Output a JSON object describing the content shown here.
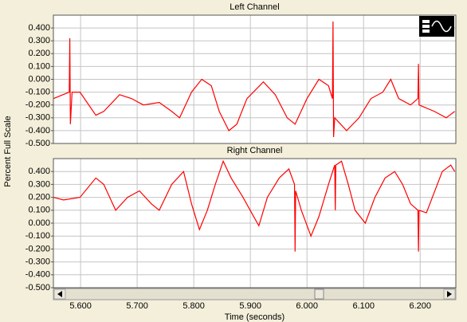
{
  "chart_data": [
    {
      "type": "line",
      "title": "Left Channel",
      "ylabel": "Percent Full Scale",
      "xlim": [
        5.552,
        6.263
      ],
      "ylim": [
        -0.5,
        0.5
      ],
      "yticks": [
        {
          "value": -0.5,
          "label": "-0.500"
        },
        {
          "value": -0.4,
          "label": "-0.400"
        },
        {
          "value": -0.3,
          "label": "-0.300"
        },
        {
          "value": -0.2,
          "label": "-0.200"
        },
        {
          "value": -0.1,
          "label": "-0.100"
        },
        {
          "value": 0,
          "label": "0.000"
        },
        {
          "value": 0.1,
          "label": "0.100"
        },
        {
          "value": 0.2,
          "label": "0.200"
        },
        {
          "value": 0.3,
          "label": "0.300"
        },
        {
          "value": 0.4,
          "label": "0.400"
        }
      ],
      "grid": true,
      "x": [
        5.552,
        5.58,
        5.581,
        5.582,
        5.585,
        5.599,
        5.627,
        5.641,
        5.669,
        5.69,
        5.711,
        5.739,
        5.761,
        5.775,
        5.796,
        5.814,
        5.831,
        5.845,
        5.862,
        5.876,
        5.894,
        5.923,
        5.944,
        5.965,
        5.979,
        6.0,
        6.021,
        6.038,
        6.045,
        6.046,
        6.047,
        6.049,
        6.07,
        6.092,
        6.113,
        6.134,
        6.148,
        6.162,
        6.183,
        6.196,
        6.197,
        6.198,
        6.225,
        6.246,
        6.261
      ],
      "series": [
        {
          "color": "#ff0000",
          "values": [
            -0.15,
            -0.1,
            0.32,
            -0.35,
            -0.1,
            -0.1,
            -0.28,
            -0.25,
            -0.12,
            -0.15,
            -0.2,
            -0.18,
            -0.25,
            -0.3,
            -0.1,
            0.0,
            -0.05,
            -0.25,
            -0.4,
            -0.35,
            -0.15,
            -0.02,
            -0.12,
            -0.3,
            -0.35,
            -0.15,
            0.0,
            -0.05,
            -0.15,
            0.45,
            -0.45,
            -0.3,
            -0.4,
            -0.3,
            -0.15,
            -0.1,
            0.0,
            -0.15,
            -0.2,
            -0.15,
            0.12,
            -0.2,
            -0.25,
            -0.3,
            -0.25
          ]
        }
      ]
    },
    {
      "type": "line",
      "title": "Right Channel",
      "xlabel": "Time (seconds)",
      "xlim": [
        5.552,
        6.263
      ],
      "ylim": [
        -0.5,
        0.5
      ],
      "xticks": [
        {
          "value": 5.6,
          "label": "5.600"
        },
        {
          "value": 5.7,
          "label": "5.700"
        },
        {
          "value": 5.8,
          "label": "5.800"
        },
        {
          "value": 5.9,
          "label": "5.900"
        },
        {
          "value": 6,
          "label": "6.000"
        },
        {
          "value": 6.1,
          "label": "6.100"
        },
        {
          "value": 6.2,
          "label": "6.200"
        }
      ],
      "yticks": [
        {
          "value": -0.5,
          "label": "-0.500"
        },
        {
          "value": -0.4,
          "label": "-0.400"
        },
        {
          "value": -0.3,
          "label": "-0.300"
        },
        {
          "value": -0.2,
          "label": "-0.200"
        },
        {
          "value": -0.1,
          "label": "-0.100"
        },
        {
          "value": 0,
          "label": "0.000"
        },
        {
          "value": 0.1,
          "label": "0.100"
        },
        {
          "value": 0.2,
          "label": "0.200"
        },
        {
          "value": 0.3,
          "label": "0.300"
        },
        {
          "value": 0.4,
          "label": "0.400"
        }
      ],
      "grid": true,
      "x": [
        5.552,
        5.57,
        5.599,
        5.627,
        5.641,
        5.662,
        5.683,
        5.704,
        5.725,
        5.739,
        5.761,
        5.782,
        5.796,
        5.81,
        5.824,
        5.838,
        5.852,
        5.866,
        5.887,
        5.906,
        5.915,
        5.93,
        5.951,
        5.968,
        5.978,
        5.979,
        5.98,
        5.99,
        6.007,
        6.021,
        6.038,
        6.049,
        6.05,
        6.051,
        6.061,
        6.073,
        6.085,
        6.103,
        6.12,
        6.138,
        6.155,
        6.169,
        6.183,
        6.196,
        6.197,
        6.198,
        6.211,
        6.239,
        6.254,
        6.261
      ],
      "series": [
        {
          "color": "#ff0000",
          "values": [
            0.2,
            0.18,
            0.2,
            0.35,
            0.3,
            0.1,
            0.2,
            0.25,
            0.15,
            0.1,
            0.3,
            0.4,
            0.15,
            -0.05,
            0.1,
            0.3,
            0.48,
            0.35,
            0.2,
            0.05,
            -0.02,
            0.2,
            0.35,
            0.42,
            0.3,
            -0.22,
            0.25,
            0.1,
            -0.1,
            0.05,
            0.3,
            0.45,
            0.1,
            0.45,
            0.48,
            0.3,
            0.1,
            0.0,
            0.2,
            0.35,
            0.4,
            0.3,
            0.15,
            0.1,
            -0.22,
            0.1,
            0.08,
            0.4,
            0.45,
            0.4
          ]
        }
      ]
    }
  ]
}
